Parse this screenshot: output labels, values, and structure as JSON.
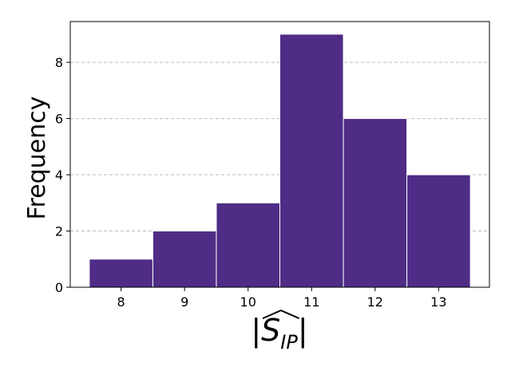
{
  "chart_data": {
    "type": "bar",
    "categories": [
      "8",
      "9",
      "10",
      "11",
      "12",
      "13"
    ],
    "values": [
      1,
      2,
      3,
      9,
      6,
      4
    ],
    "ylabel": "Frequency",
    "xlabel_main": "S",
    "xlabel_sub": "IP",
    "yticks": [
      "0",
      "2",
      "4",
      "6",
      "8"
    ],
    "xlim": [
      7.2,
      13.8
    ],
    "ylim": [
      0,
      9.45
    ],
    "grid": "horizontal dashed",
    "bar_color": "#4f2c86",
    "bar_edge_color": "#ffffff",
    "grid_color": "#bbbbbb"
  }
}
